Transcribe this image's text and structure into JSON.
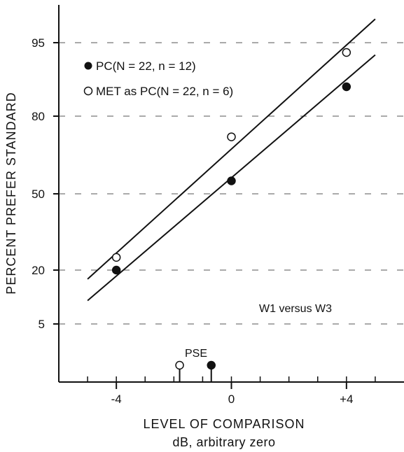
{
  "chart_data": {
    "type": "scatter",
    "title": "",
    "xlabel": "LEVEL OF COMPARISON",
    "xlabel_sub": "dB, arbitrary zero",
    "ylabel": "PERCENT PREFER STANDARD",
    "xlim": [
      -6,
      6
    ],
    "x_ticks": [
      -4,
      0,
      4
    ],
    "x_tick_labels": [
      "-4",
      "0",
      "+4"
    ],
    "y_ticks": [
      5,
      20,
      50,
      80,
      95
    ],
    "y_tick_labels": [
      "5",
      "20",
      "50",
      "80",
      "95"
    ],
    "y_scale": "probability",
    "grid": "dashed horizontal at y ticks",
    "legend_position": "top-left",
    "series": [
      {
        "name": "PC(N = 22, n = 12)",
        "marker": "filled-circle",
        "points": [
          {
            "x": -4,
            "y": 20
          },
          {
            "x": 0,
            "y": 55
          },
          {
            "x": 4,
            "y": 86
          }
        ],
        "fit_line": {
          "x": [
            -5,
            5
          ],
          "y": [
            11.5,
            92.5
          ]
        },
        "pse": -0.7
      },
      {
        "name": "MET as PC(N = 22, n = 6)",
        "marker": "open-circle",
        "points": [
          {
            "x": -4,
            "y": 25
          },
          {
            "x": 0,
            "y": 72
          },
          {
            "x": 4,
            "y": 93
          }
        ],
        "fit_line": {
          "x": [
            -5,
            5
          ],
          "y": [
            17.5,
            97.5
          ]
        },
        "pse": -1.8
      }
    ],
    "annotations": {
      "condition": "W1 versus W3",
      "pse_label": "PSE"
    }
  }
}
